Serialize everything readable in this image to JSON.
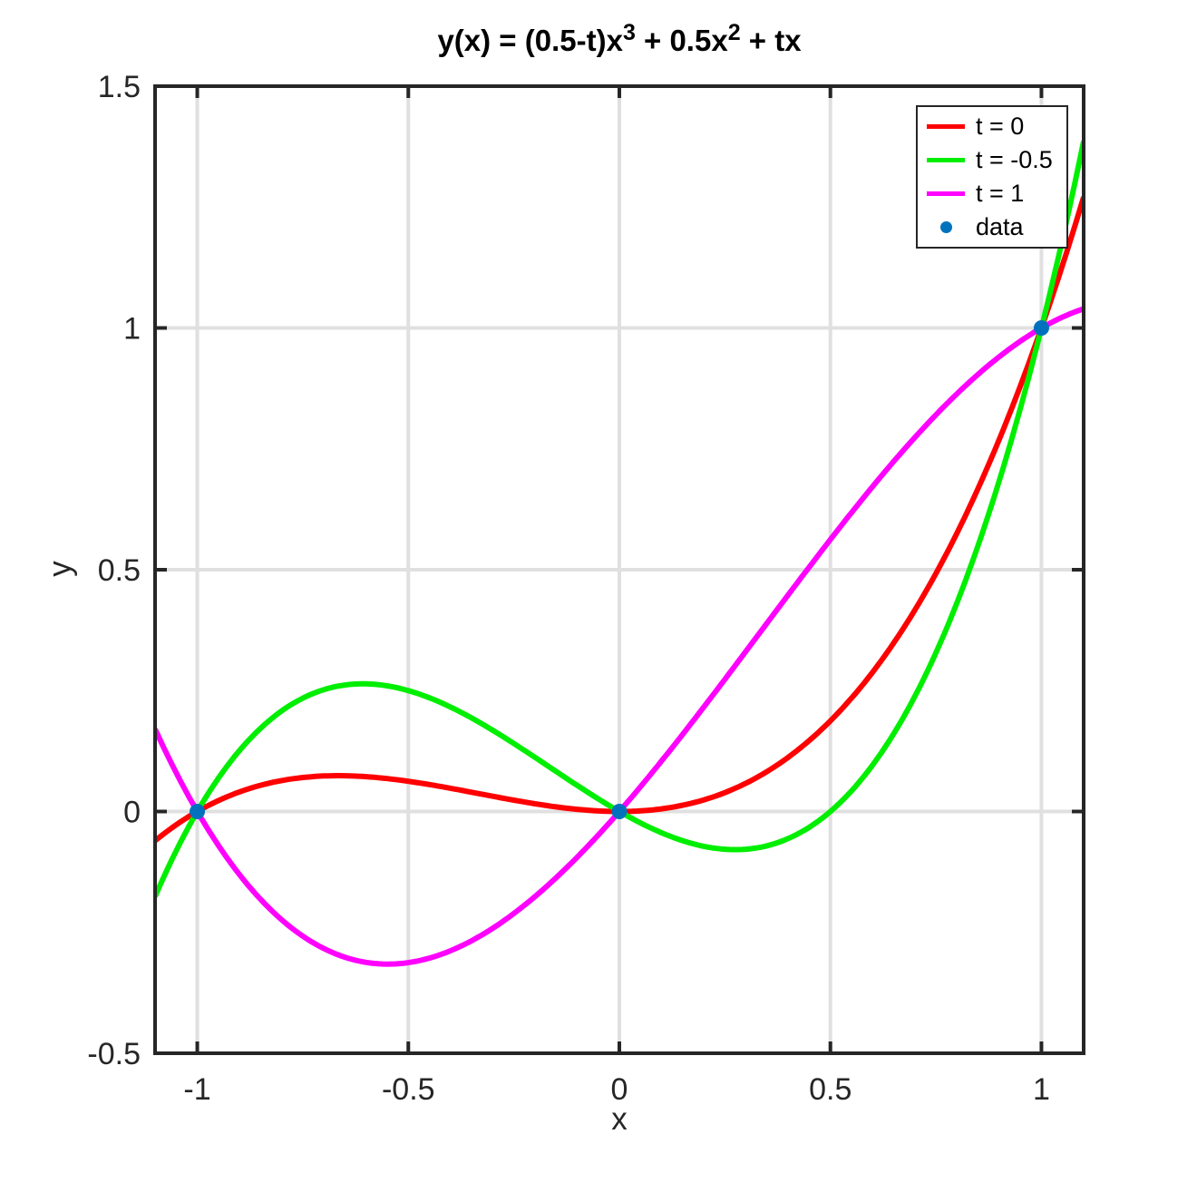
{
  "chart_data": {
    "type": "line",
    "title": "y(x) = (0.5-t)x^3 + 0.5x^2 + tx",
    "title_segments": [
      {
        "text": "y(x) = (0.5-t)x"
      },
      {
        "sup": "3"
      },
      {
        "text": " + 0.5x"
      },
      {
        "sup": "2"
      },
      {
        "text": " + tx"
      }
    ],
    "xlabel": "x",
    "ylabel": "y",
    "xlim": [
      -1.1,
      1.1
    ],
    "ylim": [
      -0.5,
      1.5
    ],
    "grid": true,
    "xticks": {
      "values": [
        -1,
        -0.5,
        0,
        0.5,
        1
      ],
      "labels": [
        "-1",
        "-0.5",
        "0",
        "0.5",
        "1"
      ]
    },
    "yticks": {
      "values": [
        -0.5,
        0,
        0.5,
        1,
        1.5
      ],
      "labels": [
        "-0.5",
        "0",
        "0.5",
        "1",
        "1.5"
      ]
    },
    "colors": {
      "grid": "#e0e0e0",
      "axis": "#262626",
      "tick_label": "#262626",
      "title": "#000000",
      "background": "#ffffff"
    },
    "formula": "y(x) = (0.5-t)*x^3 + 0.5*x^2 + t*x",
    "x_samples": [
      -1.1,
      -1,
      -0.9,
      -0.8,
      -0.7,
      -0.6,
      -0.5,
      -0.4,
      -0.3,
      -0.2,
      -0.1,
      0,
      0.1,
      0.2,
      0.3,
      0.4,
      0.5,
      0.6,
      0.7,
      0.8,
      0.9,
      1,
      1.1
    ],
    "series": [
      {
        "name": "t = 0",
        "t": 0,
        "color": "#ff0000",
        "coefficients": [
          0.5,
          0.5,
          0,
          0
        ],
        "y_samples": [
          -0.0605,
          0,
          0.0405,
          0.064,
          0.0735,
          0.072,
          0.0625,
          0.048,
          0.0315,
          0.016,
          0.0045,
          0,
          0.0055,
          0.024,
          0.0585,
          0.112,
          0.1875,
          0.288,
          0.4165,
          0.576,
          0.7695,
          1,
          1.2705
        ]
      },
      {
        "name": "t = -0.5",
        "t": -0.5,
        "color": "#00ee00",
        "coefficients": [
          1,
          0.5,
          -0.5,
          0
        ],
        "y_samples": [
          -0.176,
          0,
          0.126,
          0.208,
          0.252,
          0.264,
          0.25,
          0.216,
          0.168,
          0.112,
          0.054,
          0,
          -0.044,
          -0.072,
          -0.078,
          -0.056,
          0,
          0.096,
          0.238,
          0.432,
          0.684,
          1,
          1.386
        ]
      },
      {
        "name": "t = 1",
        "t": 1,
        "color": "#ff00ff",
        "coefficients": [
          -0.5,
          0.5,
          1,
          0
        ],
        "y_samples": [
          0.1705,
          0,
          -0.1305,
          -0.224,
          -0.2835,
          -0.312,
          -0.3125,
          -0.288,
          -0.2415,
          -0.176,
          -0.0945,
          0,
          0.1045,
          0.216,
          0.3315,
          0.448,
          0.5625,
          0.672,
          0.7735,
          0.864,
          0.9405,
          1,
          1.0395
        ]
      }
    ],
    "scatter": {
      "name": "data",
      "color": "#0072bd",
      "points": [
        [
          -1,
          0
        ],
        [
          0,
          0
        ],
        [
          1,
          1
        ]
      ]
    },
    "legend": {
      "position": "top-right",
      "entries": [
        {
          "label": "t = 0",
          "sample": "line",
          "color": "#ff0000"
        },
        {
          "label": "t = -0.5",
          "sample": "line",
          "color": "#00ee00"
        },
        {
          "label": "t = 1",
          "sample": "line",
          "color": "#ff00ff"
        },
        {
          "label": "data",
          "sample": "marker",
          "color": "#0072bd"
        }
      ]
    }
  }
}
